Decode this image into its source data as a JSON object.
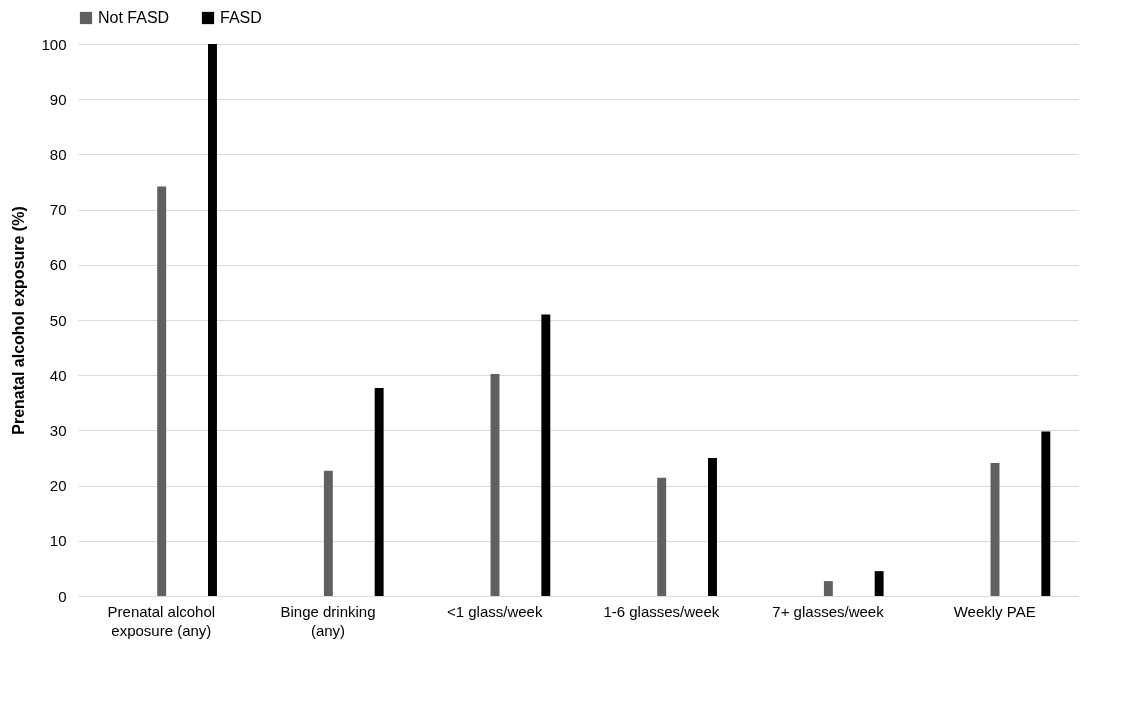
{
  "chart_data": {
    "type": "bar",
    "ylabel": "Prenatal alcohol exposure (%)",
    "categories": [
      "Prenatal alcohol exposure (any)",
      "Binge drinking (any)",
      "<1 glass/week",
      "1-6 glasses/week",
      "7+ glasses/week",
      "Weekly PAE"
    ],
    "series": [
      {
        "name": "Not FASD",
        "color": "#606060",
        "values": [
          74.2,
          22.7,
          40.2,
          21.4,
          2.7,
          24.1
        ]
      },
      {
        "name": "FASD",
        "color": "#000000",
        "values": [
          100,
          37.7,
          51.0,
          25.0,
          4.5,
          29.8
        ]
      }
    ],
    "ylim": [
      0,
      100
    ],
    "yticks": [
      0,
      10,
      20,
      30,
      40,
      50,
      60,
      70,
      80,
      90,
      100
    ],
    "grid": "y",
    "legend": "top"
  }
}
